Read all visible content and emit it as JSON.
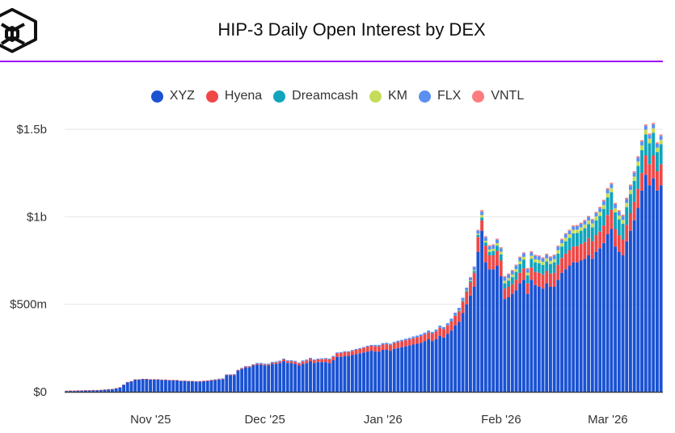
{
  "header": {
    "title": "HIP-3 Daily Open Interest by DEX",
    "logo": "cube-logo"
  },
  "chart_data": {
    "type": "bar",
    "stacked": true,
    "title": "HIP-3 Daily Open Interest by DEX",
    "start_date": "2025-10-12",
    "units": "USD millions",
    "ylim": [
      0,
      1500
    ],
    "grid": true,
    "legend_placement": "top-center",
    "y_ticks": [
      {
        "value": 0,
        "label": "$0"
      },
      {
        "value": 500,
        "label": "$500m"
      },
      {
        "value": 1000,
        "label": "$1b"
      },
      {
        "value": 1500,
        "label": "$1.5b"
      }
    ],
    "x_ticks": [
      {
        "day": 20,
        "label": "Nov '25"
      },
      {
        "day": 50,
        "label": "Dec '25"
      },
      {
        "day": 81,
        "label": "Jan '26"
      },
      {
        "day": 112,
        "label": "Feb '26"
      },
      {
        "day": 140,
        "label": "Mar '26"
      }
    ],
    "series": [
      {
        "name": "XYZ",
        "color": "#1a52d3",
        "values": [
          5,
          6,
          6,
          7,
          7,
          8,
          8,
          9,
          9,
          10,
          12,
          14,
          15,
          20,
          25,
          40,
          55,
          60,
          70,
          70,
          72,
          72,
          70,
          70,
          70,
          68,
          68,
          66,
          66,
          65,
          62,
          62,
          60,
          60,
          58,
          58,
          60,
          62,
          65,
          68,
          70,
          72,
          95,
          95,
          95,
          120,
          130,
          140,
          140,
          150,
          155,
          155,
          150,
          150,
          160,
          160,
          165,
          175,
          165,
          165,
          160,
          150,
          160,
          165,
          175,
          165,
          170,
          170,
          170,
          165,
          180,
          200,
          200,
          205,
          205,
          210,
          215,
          220,
          225,
          230,
          235,
          230,
          230,
          240,
          240,
          235,
          245,
          250,
          255,
          260,
          265,
          270,
          275,
          280,
          290,
          300,
          290,
          300,
          320,
          310,
          330,
          350,
          380,
          400,
          450,
          500,
          550,
          600,
          800,
          920,
          740,
          700,
          700,
          720,
          660,
          530,
          540,
          560,
          580,
          620,
          640,
          560,
          640,
          610,
          600,
          590,
          620,
          600,
          600,
          640,
          680,
          700,
          720,
          740,
          740,
          750,
          760,
          780,
          760,
          800,
          820,
          850,
          900,
          930,
          830,
          800,
          780,
          860,
          920,
          980,
          1050,
          1150,
          1240,
          1180,
          1220,
          1150,
          1180
        ]
      },
      {
        "name": "Hyena",
        "color": "#ef4747",
        "values": [
          1,
          1,
          1,
          1,
          1,
          1,
          1,
          1,
          1,
          1,
          1,
          1,
          1,
          1,
          1,
          1,
          1,
          1,
          1,
          1,
          2,
          2,
          2,
          2,
          2,
          2,
          2,
          2,
          2,
          2,
          2,
          2,
          2,
          2,
          2,
          3,
          3,
          3,
          3,
          3,
          3,
          3,
          3,
          3,
          4,
          4,
          5,
          5,
          5,
          5,
          5,
          5,
          6,
          6,
          6,
          8,
          8,
          10,
          10,
          10,
          12,
          12,
          14,
          14,
          14,
          15,
          15,
          16,
          18,
          20,
          20,
          20,
          22,
          22,
          22,
          24,
          25,
          25,
          26,
          28,
          28,
          30,
          30,
          30,
          32,
          32,
          32,
          34,
          34,
          35,
          35,
          36,
          36,
          38,
          38,
          40,
          42,
          44,
          46,
          48,
          50,
          52,
          55,
          60,
          65,
          70,
          75,
          80,
          85,
          60,
          95,
          80,
          80,
          85,
          90,
          60,
          60,
          55,
          60,
          60,
          65,
          60,
          70,
          75,
          80,
          80,
          70,
          75,
          80,
          85,
          85,
          90,
          90,
          90,
          92,
          95,
          95,
          98,
          100,
          95,
          95,
          100,
          110,
          110,
          100,
          95,
          90,
          95,
          100,
          105,
          110,
          100,
          110,
          120,
          130,
          110,
          120
        ]
      },
      {
        "name": "Dreamcash",
        "color": "#10a5bd",
        "values": [
          0,
          0,
          0,
          0,
          0,
          0,
          0,
          0,
          0,
          0,
          0,
          0,
          0,
          0,
          0,
          0,
          0,
          0,
          0,
          0,
          0,
          0,
          0,
          0,
          0,
          0,
          0,
          0,
          0,
          0,
          0,
          0,
          0,
          0,
          0,
          0,
          0,
          0,
          0,
          0,
          0,
          0,
          0,
          0,
          0,
          0,
          0,
          0,
          0,
          0,
          0,
          0,
          0,
          0,
          0,
          0,
          0,
          0,
          0,
          0,
          0,
          0,
          0,
          0,
          0,
          0,
          0,
          0,
          0,
          0,
          0,
          0,
          0,
          0,
          0,
          0,
          0,
          0,
          0,
          0,
          0,
          0,
          0,
          0,
          0,
          0,
          0,
          0,
          0,
          0,
          0,
          0,
          0,
          0,
          0,
          0,
          0,
          0,
          0,
          0,
          0,
          2,
          3,
          4,
          5,
          6,
          8,
          10,
          12,
          15,
          18,
          20,
          25,
          30,
          35,
          30,
          35,
          40,
          45,
          50,
          50,
          45,
          50,
          55,
          55,
          55,
          55,
          55,
          60,
          65,
          65,
          70,
          70,
          75,
          75,
          75,
          80,
          80,
          80,
          85,
          90,
          95,
          100,
          100,
          95,
          90,
          90,
          100,
          110,
          120,
          130,
          130,
          120,
          120,
          130,
          110,
          115
        ]
      },
      {
        "name": "KM",
        "color": "#c5dc58",
        "values": [
          0,
          0,
          0,
          0,
          0,
          0,
          0,
          0,
          0,
          0,
          0,
          0,
          0,
          0,
          0,
          0,
          0,
          0,
          0,
          0,
          0,
          0,
          0,
          0,
          0,
          0,
          0,
          0,
          0,
          0,
          0,
          0,
          0,
          0,
          0,
          0,
          0,
          0,
          0,
          0,
          0,
          0,
          0,
          0,
          0,
          0,
          0,
          0,
          0,
          0,
          0,
          0,
          0,
          0,
          0,
          0,
          0,
          0,
          0,
          0,
          0,
          0,
          0,
          0,
          0,
          0,
          0,
          0,
          0,
          0,
          0,
          0,
          0,
          0,
          0,
          0,
          0,
          0,
          0,
          0,
          0,
          0,
          0,
          0,
          0,
          0,
          0,
          0,
          0,
          0,
          0,
          0,
          0,
          0,
          0,
          0,
          0,
          0,
          0,
          0,
          0,
          0,
          0,
          1,
          2,
          3,
          4,
          5,
          6,
          15,
          10,
          12,
          12,
          14,
          15,
          15,
          15,
          15,
          16,
          16,
          16,
          16,
          17,
          17,
          18,
          18,
          18,
          18,
          18,
          19,
          19,
          20,
          20,
          20,
          20,
          20,
          21,
          21,
          22,
          22,
          22,
          22,
          24,
          24,
          24,
          22,
          22,
          24,
          24,
          25,
          26,
          28,
          28,
          26,
          26,
          25,
          25
        ]
      },
      {
        "name": "FLX",
        "color": "#5b8ff0",
        "values": [
          0,
          0,
          0,
          0,
          0,
          0,
          0,
          0,
          0,
          0,
          0,
          0,
          0,
          0,
          0,
          0,
          0,
          0,
          0,
          0,
          0,
          0,
          0,
          0,
          0,
          0,
          0,
          0,
          0,
          0,
          0,
          0,
          0,
          0,
          0,
          0,
          0,
          0,
          0,
          0,
          2,
          2,
          2,
          2,
          2,
          2,
          2,
          2,
          2,
          2,
          5,
          5,
          5,
          5,
          5,
          5,
          5,
          5,
          5,
          5,
          5,
          5,
          5,
          5,
          5,
          5,
          5,
          5,
          5,
          5,
          5,
          5,
          5,
          5,
          5,
          5,
          5,
          5,
          5,
          5,
          5,
          8,
          8,
          8,
          8,
          8,
          8,
          8,
          8,
          8,
          8,
          10,
          10,
          10,
          10,
          10,
          10,
          12,
          12,
          12,
          12,
          14,
          14,
          15,
          15,
          16,
          16,
          18,
          18,
          20,
          20,
          20,
          20,
          20,
          20,
          20,
          20,
          20,
          20,
          20,
          20,
          20,
          20,
          20,
          20,
          20,
          20,
          20,
          20,
          20,
          20,
          20,
          20,
          20,
          20,
          20,
          20,
          20,
          20,
          20,
          22,
          22,
          22,
          22,
          22,
          22,
          22,
          22,
          22,
          22,
          22,
          22,
          22,
          22,
          22,
          22,
          22
        ]
      },
      {
        "name": "VNTL",
        "color": "#fb7d7d",
        "values": [
          0,
          0,
          0,
          0,
          0,
          0,
          0,
          0,
          0,
          0,
          0,
          0,
          0,
          0,
          0,
          0,
          0,
          0,
          0,
          0,
          0,
          0,
          0,
          0,
          0,
          0,
          0,
          0,
          0,
          0,
          0,
          0,
          0,
          0,
          0,
          0,
          0,
          0,
          0,
          0,
          0,
          0,
          0,
          0,
          0,
          0,
          0,
          0,
          0,
          0,
          0,
          0,
          0,
          0,
          0,
          0,
          0,
          0,
          0,
          0,
          0,
          0,
          0,
          0,
          0,
          0,
          0,
          0,
          0,
          0,
          0,
          0,
          0,
          0,
          0,
          0,
          0,
          0,
          0,
          0,
          0,
          0,
          0,
          0,
          0,
          0,
          0,
          0,
          0,
          0,
          0,
          0,
          0,
          0,
          0,
          0,
          0,
          0,
          0,
          0,
          0,
          0,
          0,
          0,
          0,
          0,
          2,
          3,
          4,
          8,
          6,
          6,
          6,
          6,
          6,
          6,
          6,
          6,
          6,
          6,
          6,
          6,
          6,
          6,
          6,
          6,
          6,
          6,
          6,
          6,
          6,
          6,
          6,
          6,
          6,
          6,
          6,
          6,
          6,
          6,
          8,
          8,
          8,
          8,
          8,
          8,
          8,
          8,
          8,
          8,
          8,
          8,
          8,
          8,
          8,
          8,
          8
        ]
      }
    ]
  }
}
